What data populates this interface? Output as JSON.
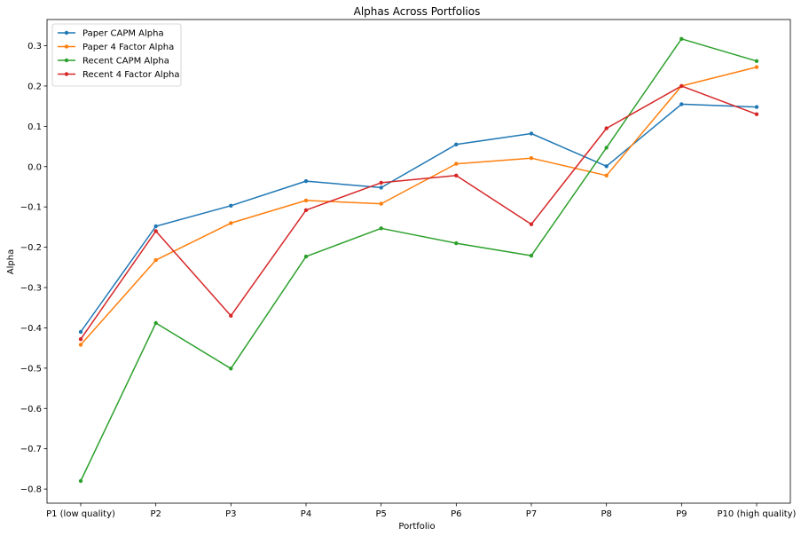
{
  "chart_data": {
    "type": "line",
    "title": "Alphas Across Portfolios",
    "xlabel": "Portfolio",
    "ylabel": "Alpha",
    "categories": [
      "P1 (low quality)",
      "P2",
      "P3",
      "P4",
      "P5",
      "P6",
      "P7",
      "P8",
      "P9",
      "P10 (high quality)"
    ],
    "ylim": [
      -0.835,
      0.365
    ],
    "yticks": [
      -0.8,
      -0.7,
      -0.6,
      -0.5,
      -0.4,
      -0.3,
      -0.2,
      -0.1,
      0.0,
      0.1,
      0.2,
      0.3
    ],
    "ytick_labels": [
      "−0.8",
      "−0.7",
      "−0.6",
      "−0.5",
      "−0.4",
      "−0.3",
      "−0.2",
      "−0.1",
      "0.0",
      "0.1",
      "0.2",
      "0.3"
    ],
    "grid": false,
    "legend_position": "top-left",
    "series": [
      {
        "name": "Paper CAPM Alpha",
        "color": "#1f77b4",
        "values": [
          -0.41,
          -0.148,
          -0.097,
          -0.036,
          -0.052,
          0.055,
          0.082,
          0.001,
          0.155,
          0.148
        ]
      },
      {
        "name": "Paper 4 Factor Alpha",
        "color": "#ff7f0e",
        "values": [
          -0.442,
          -0.232,
          -0.14,
          -0.084,
          -0.092,
          0.007,
          0.021,
          -0.022,
          0.2,
          0.247
        ]
      },
      {
        "name": "Recent CAPM Alpha",
        "color": "#2ca02c",
        "values": [
          -0.78,
          -0.388,
          -0.501,
          -0.223,
          -0.153,
          -0.19,
          -0.221,
          0.047,
          0.317,
          0.262
        ]
      },
      {
        "name": "Recent 4 Factor Alpha",
        "color": "#d62728",
        "values": [
          -0.428,
          -0.16,
          -0.37,
          -0.108,
          -0.04,
          -0.022,
          -0.143,
          0.095,
          0.2,
          0.13
        ]
      }
    ]
  }
}
